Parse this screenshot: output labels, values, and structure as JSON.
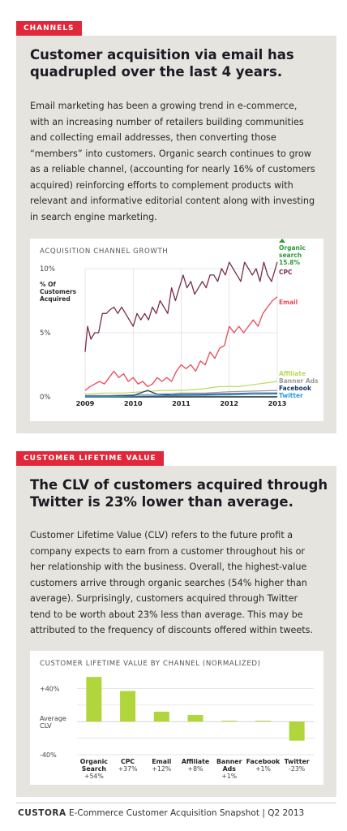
{
  "section1": {
    "tag": "CHANNELS",
    "headline_line1": "Customer acquisition via email has",
    "headline_line2": "quadrupled over the last 4 years.",
    "body": [
      "Email marketing has been a growing trend in e-commerce,",
      "with an increasing number of retailers building communities",
      "and collecting email addresses, then converting those",
      "“members” into customers. Organic search continues to grow",
      "as a reliable channel, (accounting for nearly 16% of customers",
      "acquired) reinforcing efforts to complement products with",
      "relevant and informative editorial content along with investing",
      "in search engine marketing."
    ]
  },
  "section2": {
    "tag": "CUSTOMER LIFETIME VALUE",
    "headline_line1": "The CLV of customers acquired through",
    "headline_line2": "Twitter is 23% lower than average.",
    "body": [
      "Customer Lifetime Value (CLV) refers to the future profit a",
      "company expects to earn from a customer throughout his or",
      "her relationship with the business. Overall, the highest-value",
      "customers arrive through organic searches (54% higher than",
      "average). Surprisingly, customers acquired through Twitter",
      "tend to be worth about 23% less than average. This may be",
      "attributed to the frequency of discounts offered within tweets."
    ]
  },
  "footer": {
    "brand": "CUSTORA",
    "text": "E-Commerce Customer Acquisition Snapshot | Q2 2013"
  },
  "colors": {
    "red": "#e0283a",
    "panel": "#e6e4de",
    "cpc": "#7a2c4a",
    "email": "#e8485a",
    "organic": "#2e9a3a",
    "affiliate": "#b8dc5a",
    "banner": "#9a9a9a",
    "facebook": "#1a3a6a",
    "twitter": "#2a9ad8",
    "bar": "#b0d63c"
  },
  "chart_data": [
    {
      "type": "line",
      "title": "ACQUISITION CHANNEL GROWTH",
      "ylabel": "% Of Customers Acquired",
      "ylabel_lines": [
        "% Of",
        "Customers",
        "Acquired"
      ],
      "y_ticks": [
        "10%",
        "5%",
        "0%"
      ],
      "x_ticks": [
        "2009",
        "2010",
        "2011",
        "2012",
        "2013"
      ],
      "xlim": [
        2009,
        2013
      ],
      "ylim": [
        0,
        10
      ],
      "organic_label_lines": [
        "Organic",
        "search",
        "15.8%"
      ],
      "series": [
        {
          "name": "CPC",
          "x": [
            2009.0,
            2009.05,
            2009.12,
            2009.2,
            2009.28,
            2009.36,
            2009.44,
            2009.52,
            2009.6,
            2009.68,
            2009.76,
            2009.84,
            2009.92,
            2010.0,
            2010.08,
            2010.16,
            2010.24,
            2010.32,
            2010.4,
            2010.48,
            2010.56,
            2010.64,
            2010.72,
            2010.8,
            2010.88,
            2010.96,
            2011.04,
            2011.12,
            2011.2,
            2011.28,
            2011.36,
            2011.44,
            2011.52,
            2011.6,
            2011.68,
            2011.76,
            2011.84,
            2011.92,
            2012.0,
            2012.08,
            2012.16,
            2012.24,
            2012.32,
            2012.4,
            2012.48,
            2012.56,
            2012.64,
            2012.72,
            2012.8,
            2012.88,
            2012.96,
            2013.0
          ],
          "values": [
            3.5,
            5.5,
            4.5,
            5.0,
            5.0,
            6.5,
            6.5,
            6.8,
            7.0,
            6.5,
            7.0,
            6.5,
            6.0,
            5.5,
            6.5,
            6.0,
            6.5,
            6.0,
            7.0,
            6.5,
            7.5,
            7.0,
            6.5,
            8.5,
            7.5,
            8.5,
            9.5,
            8.5,
            9.0,
            8.0,
            8.5,
            9.0,
            8.5,
            9.5,
            9.5,
            9.0,
            10.0,
            9.5,
            10.5,
            10.0,
            9.5,
            9.0,
            10.5,
            10.0,
            9.5,
            10.0,
            9.0,
            10.5,
            9.5,
            9.0,
            10.0,
            10.5
          ]
        },
        {
          "name": "Email",
          "x": [
            2009.0,
            2009.1,
            2009.2,
            2009.3,
            2009.4,
            2009.5,
            2009.6,
            2009.7,
            2009.8,
            2009.9,
            2010.0,
            2010.1,
            2010.2,
            2010.3,
            2010.4,
            2010.5,
            2010.6,
            2010.7,
            2010.8,
            2010.9,
            2011.0,
            2011.1,
            2011.2,
            2011.3,
            2011.4,
            2011.5,
            2011.6,
            2011.7,
            2011.8,
            2011.9,
            2012.0,
            2012.1,
            2012.2,
            2012.3,
            2012.4,
            2012.5,
            2012.6,
            2012.7,
            2012.8,
            2012.9,
            2013.0
          ],
          "values": [
            0.5,
            0.8,
            1.0,
            1.2,
            1.0,
            1.5,
            2.0,
            1.5,
            1.8,
            1.2,
            1.5,
            1.0,
            1.2,
            0.8,
            1.0,
            1.5,
            1.2,
            1.5,
            1.2,
            2.0,
            2.5,
            2.2,
            2.5,
            2.0,
            2.8,
            2.5,
            3.5,
            3.0,
            3.8,
            4.0,
            5.5,
            5.0,
            5.5,
            5.0,
            5.5,
            6.0,
            5.5,
            6.5,
            7.0,
            7.5,
            7.8
          ]
        },
        {
          "name": "Affiliate",
          "x": [
            2009.0,
            2009.4,
            2009.8,
            2010.2,
            2010.6,
            2011.0,
            2011.4,
            2011.8,
            2012.2,
            2012.6,
            2013.0
          ],
          "values": [
            0.2,
            0.3,
            0.3,
            0.4,
            0.5,
            0.5,
            0.6,
            0.8,
            0.8,
            1.0,
            1.2
          ]
        },
        {
          "name": "Banner Ads",
          "x": [
            2009.0,
            2009.5,
            2010.0,
            2010.5,
            2011.0,
            2011.5,
            2012.0,
            2012.5,
            2013.0
          ],
          "values": [
            0.1,
            0.1,
            0.15,
            0.2,
            0.3,
            0.3,
            0.4,
            0.45,
            0.5
          ]
        },
        {
          "name": "Facebook",
          "x": [
            2009.0,
            2009.5,
            2010.0,
            2010.3,
            2010.5,
            2010.8,
            2011.0,
            2011.5,
            2012.0,
            2012.5,
            2013.0
          ],
          "values": [
            0.05,
            0.05,
            0.1,
            0.5,
            0.2,
            0.15,
            0.2,
            0.2,
            0.25,
            0.3,
            0.3
          ]
        },
        {
          "name": "Twitter",
          "x": [
            2009.0,
            2009.5,
            2010.0,
            2010.5,
            2011.0,
            2011.5,
            2012.0,
            2012.5,
            2013.0
          ],
          "values": [
            0.02,
            0.02,
            0.05,
            0.08,
            0.1,
            0.12,
            0.15,
            0.18,
            0.2
          ]
        }
      ]
    },
    {
      "type": "bar",
      "title": "CUSTOMER LIFETIME VALUE BY CHANNEL (NORMALIZED)",
      "y_ticks": [
        "+40%",
        "Average CLV",
        "-40%"
      ],
      "ylim": [
        -40,
        60
      ],
      "categories": [
        {
          "line1": "Organic",
          "line2": "Search",
          "value_label": "+54%"
        },
        {
          "line1": "CPC",
          "line2": "",
          "value_label": "+37%"
        },
        {
          "line1": "Email",
          "line2": "",
          "value_label": "+12%"
        },
        {
          "line1": "Affiliate",
          "line2": "",
          "value_label": "+8%"
        },
        {
          "line1": "Banner",
          "line2": "Ads",
          "value_label": "+1%"
        },
        {
          "line1": "Facebook",
          "line2": "",
          "value_label": "+1%"
        },
        {
          "line1": "Twitter",
          "line2": "",
          "value_label": "-23%"
        }
      ],
      "values": [
        54,
        37,
        12,
        8,
        1,
        1,
        -23
      ]
    }
  ]
}
